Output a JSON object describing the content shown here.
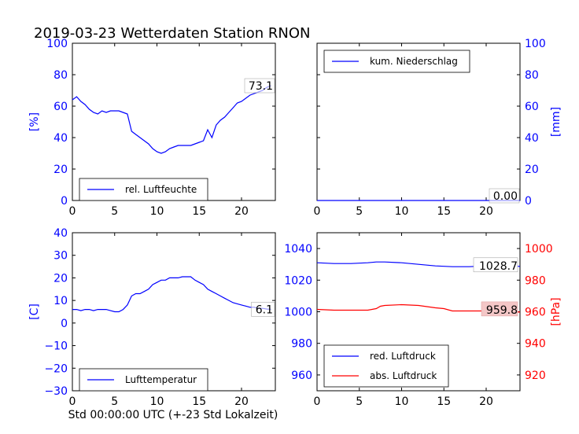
{
  "figure": {
    "title": "2019-03-23 Wetterdaten Station RNON",
    "xlabel": "Std 00:00:00 UTC (+-23 Std Lokalzeit)",
    "colors": {
      "blue": "#0000ff",
      "red": "#ff0000",
      "label_box_red": "#f4c7c7"
    }
  },
  "chart_data": [
    {
      "type": "line",
      "panel": "top-left",
      "ylabel": "[%]",
      "ylabel_color": "#0000ff",
      "ylim": [
        0,
        100
      ],
      "xlim": [
        0,
        24
      ],
      "xticks": [
        "0",
        "5",
        "10",
        "15",
        "20"
      ],
      "yticks": [
        "0",
        "20",
        "40",
        "60",
        "80",
        "100"
      ],
      "legend_placement": "lower-left",
      "value_label": "73.1",
      "series": [
        {
          "name": "rel. Luftfeuchte",
          "color": "#0000ff",
          "x": [
            0,
            0.5,
            1,
            1.5,
            2,
            2.5,
            3,
            3.5,
            4,
            4.5,
            5,
            5.5,
            6,
            6.5,
            7,
            7.5,
            8,
            8.5,
            9,
            9.5,
            10,
            10.5,
            11,
            11.5,
            12,
            12.5,
            13,
            13.5,
            14,
            14.5,
            15,
            15.5,
            16,
            16.5,
            17,
            17.5,
            18,
            18.5,
            19,
            19.5,
            20,
            20.5,
            21,
            21.5,
            22,
            22.5,
            23,
            23.5
          ],
          "y": [
            64,
            66,
            63,
            61,
            58,
            56,
            55,
            57,
            56,
            57,
            57,
            57,
            56,
            55,
            44,
            42,
            40,
            38,
            36,
            33,
            31,
            30,
            31,
            33,
            34,
            35,
            35,
            35,
            35,
            36,
            37,
            38,
            45,
            40,
            48,
            51,
            53,
            56,
            59,
            62,
            63,
            65,
            67,
            68,
            69,
            70,
            72,
            73
          ]
        }
      ]
    },
    {
      "type": "line",
      "panel": "top-right",
      "ylabel": "[mm]",
      "ylabel_color": "#0000ff",
      "ylim": [
        0,
        100
      ],
      "xlim": [
        0,
        24
      ],
      "xticks": [
        "0",
        "5",
        "10",
        "15",
        "20"
      ],
      "yticks": [
        "0",
        "20",
        "40",
        "60",
        "80",
        "100"
      ],
      "legend_placement": "upper-left",
      "value_label": "0.00",
      "series": [
        {
          "name": "kum. Niederschlag",
          "color": "#0000ff",
          "x": [
            0,
            24
          ],
          "y": [
            0,
            0
          ]
        }
      ]
    },
    {
      "type": "line",
      "panel": "bottom-left",
      "ylabel": "[C]",
      "ylabel_color": "#0000ff",
      "ylim": [
        -30,
        40
      ],
      "xlim": [
        0,
        24
      ],
      "xticks": [
        "0",
        "5",
        "10",
        "15",
        "20"
      ],
      "yticks": [
        "−30",
        "−20",
        "−10",
        "0",
        "10",
        "20",
        "30",
        "40"
      ],
      "legend_placement": "lower-left",
      "value_label": "6.1",
      "series": [
        {
          "name": "Lufttemperatur",
          "color": "#0000ff",
          "x": [
            0,
            0.5,
            1,
            1.5,
            2,
            2.5,
            3,
            3.5,
            4,
            4.5,
            5,
            5.5,
            6,
            6.5,
            7,
            7.5,
            8,
            8.5,
            9,
            9.5,
            10,
            10.5,
            11,
            11.5,
            12,
            12.5,
            13,
            13.5,
            14,
            14.5,
            15,
            15.5,
            16,
            16.5,
            17,
            17.5,
            18,
            18.5,
            19,
            19.5,
            20,
            20.5,
            21,
            21.5,
            22,
            22.5,
            23,
            23.5
          ],
          "y": [
            6,
            6,
            5.5,
            6,
            6,
            5.5,
            6,
            6,
            6,
            5.5,
            5,
            5,
            6,
            8,
            12,
            13,
            13,
            14,
            15,
            17,
            18,
            19,
            19,
            20,
            20,
            20,
            20.5,
            20.5,
            20.5,
            19,
            18,
            17,
            15,
            14,
            13,
            12,
            11,
            10,
            9,
            8.5,
            8,
            7.5,
            7,
            7,
            6.5,
            6.5,
            6.2,
            6.1
          ]
        }
      ]
    },
    {
      "type": "line",
      "panel": "bottom-right",
      "ylabel": "[hPa]",
      "ylabel_color": "#ff0000",
      "ylim_left": [
        950,
        1050
      ],
      "ylim_right": [
        910,
        1010
      ],
      "xlim": [
        0,
        24
      ],
      "xticks": [
        "0",
        "5",
        "10",
        "15",
        "20"
      ],
      "yticks_left": [
        "960",
        "980",
        "1000",
        "1020",
        "1040"
      ],
      "yticks_right": [
        "920",
        "940",
        "960",
        "980",
        "1000"
      ],
      "legend_placement": "lower-left",
      "value_labels": [
        "1028.7",
        "959.8"
      ],
      "series": [
        {
          "name": "red. Luftdruck",
          "color": "#0000ff",
          "axis": "left",
          "x": [
            0,
            2,
            4,
            6,
            7,
            8,
            10,
            12,
            14,
            16,
            18,
            20,
            22,
            24
          ],
          "y": [
            1031,
            1030.5,
            1030.5,
            1031,
            1031.5,
            1031.5,
            1031,
            1030,
            1029,
            1028.5,
            1028.5,
            1029,
            1029,
            1028.7
          ]
        },
        {
          "name": "abs. Luftdruck",
          "color": "#ff0000",
          "axis": "right",
          "x": [
            0,
            2,
            4,
            6,
            7,
            7.5,
            8,
            10,
            12,
            14,
            15,
            16,
            18,
            20,
            22,
            24
          ],
          "y": [
            961.5,
            961,
            961,
            961,
            962,
            963.5,
            964,
            964.5,
            964,
            962.5,
            962,
            960.5,
            960.5,
            960.5,
            960,
            959.8
          ]
        }
      ]
    }
  ]
}
